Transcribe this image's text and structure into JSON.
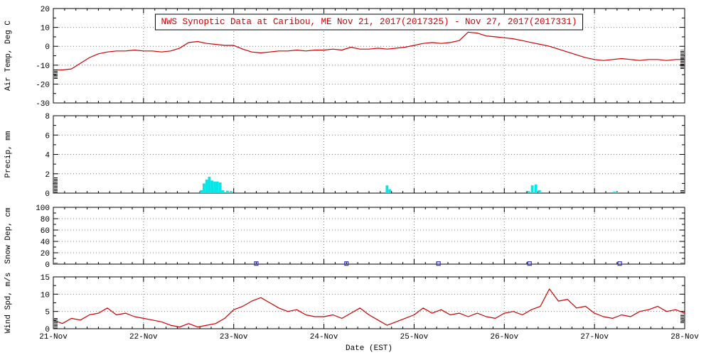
{
  "title": "NWS Synoptic Data at Caribou, ME   Nov 21, 2017(2017325) - Nov 27, 2017(2017331)",
  "colors": {
    "series": "#cc0000",
    "precip_bar": "#00e8e8",
    "snow_marker": "#3333bb",
    "title_text": "#cc0000",
    "grid": "#777777",
    "axis": "#000000"
  },
  "x_axis": {
    "label": "Date (EST)",
    "lim": [
      0,
      7
    ],
    "ticks": [
      0,
      1,
      2,
      3,
      4,
      5,
      6,
      7
    ],
    "tick_labels": [
      "21-Nov",
      "22-Nov",
      "23-Nov",
      "24-Nov",
      "25-Nov",
      "26-Nov",
      "27-Nov",
      "28-Nov"
    ],
    "minor_step": 0.125
  },
  "chart_data": [
    {
      "id": "air-temp",
      "type": "line",
      "ylabel": "Air Temp, Deg C",
      "ylim": [
        -30,
        20
      ],
      "yticks": [
        -30,
        -20,
        -10,
        0,
        10,
        20
      ],
      "minor_step": 5,
      "x_start": 0,
      "x_step": 0.1,
      "y": [
        -12.5,
        -12.5,
        -12,
        -9,
        -6,
        -4,
        -3,
        -2.5,
        -2.5,
        -2,
        -2.5,
        -2.5,
        -3,
        -2.5,
        -1,
        2,
        2.5,
        1.5,
        1,
        0.5,
        0.5,
        -1.5,
        -3,
        -3.5,
        -3,
        -2.5,
        -2.5,
        -2,
        -2.5,
        -2,
        -2,
        -1.5,
        -2,
        -0.5,
        -1.5,
        -1.5,
        -1,
        -1.5,
        -1,
        -0.5,
        0.5,
        1.5,
        2,
        1.5,
        2,
        3,
        7.5,
        7,
        5.5,
        5,
        4.5,
        4,
        3,
        2,
        1,
        0,
        -1.5,
        -3,
        -4.5,
        -6,
        -7,
        -7.5,
        -7,
        -6.5,
        -7,
        -7.5,
        -7,
        -7,
        -7.5,
        -7,
        -7
      ],
      "edge_left": [
        -17.5,
        -12
      ],
      "edge_right": [
        -12,
        -2
      ]
    },
    {
      "id": "precip",
      "type": "bar",
      "ylabel": "Precip, mm",
      "ylim": [
        0,
        8
      ],
      "yticks": [
        0,
        2,
        4,
        6,
        8
      ],
      "minor_step": 1,
      "bars": [
        {
          "x": 1.64,
          "h": 0.3
        },
        {
          "x": 1.67,
          "h": 1.0
        },
        {
          "x": 1.7,
          "h": 1.4
        },
        {
          "x": 1.73,
          "h": 1.7
        },
        {
          "x": 1.76,
          "h": 1.3
        },
        {
          "x": 1.79,
          "h": 1.2
        },
        {
          "x": 1.82,
          "h": 1.2
        },
        {
          "x": 1.85,
          "h": 1.1
        },
        {
          "x": 1.88,
          "h": 0.3
        },
        {
          "x": 1.93,
          "h": 0.25
        },
        {
          "x": 1.97,
          "h": 0.2
        },
        {
          "x": 3.7,
          "h": 0.8
        },
        {
          "x": 3.73,
          "h": 0.4
        },
        {
          "x": 5.27,
          "h": 0.2
        },
        {
          "x": 5.31,
          "h": 0.8
        },
        {
          "x": 5.35,
          "h": 0.9
        },
        {
          "x": 5.39,
          "h": 0.3
        },
        {
          "x": 6.22,
          "h": 0.15
        },
        {
          "x": 6.25,
          "h": 0.1
        }
      ],
      "edge_left": [
        0,
        1.65
      ],
      "edge_right": [
        0,
        0.35
      ]
    },
    {
      "id": "snow-depth",
      "type": "scatter",
      "ylabel": "Snow Dep, cm",
      "ylim": [
        0,
        100
      ],
      "yticks": [
        0,
        20,
        40,
        60,
        80,
        100
      ],
      "minor_step": 10,
      "x": [
        2.25,
        3.25,
        4.27,
        5.28,
        6.28
      ],
      "y": [
        1,
        1,
        1,
        1,
        1
      ],
      "edge_left": [
        0,
        2
      ],
      "edge_right": [
        0,
        2
      ]
    },
    {
      "id": "wind-speed",
      "type": "line",
      "ylabel": "Wind Spd, m/s",
      "ylim": [
        0,
        15
      ],
      "yticks": [
        0,
        5,
        10,
        15
      ],
      "minor_step": 2.5,
      "x_start": 0,
      "x_step": 0.1,
      "y": [
        2.5,
        1.5,
        3,
        2.5,
        4,
        4.5,
        6,
        4,
        4.5,
        3.5,
        3,
        2.5,
        2,
        1,
        0.5,
        1.5,
        0.5,
        1,
        1.5,
        3,
        5.5,
        6.5,
        8,
        9,
        7.5,
        6,
        5,
        5.5,
        4,
        3.5,
        3.5,
        4,
        3,
        4.5,
        6,
        4,
        2.5,
        1,
        2,
        3,
        4,
        6,
        4.5,
        5.5,
        4,
        4.5,
        3.5,
        4.5,
        3.5,
        3,
        4.5,
        5,
        4,
        5.5,
        6.5,
        11.5,
        8,
        8.5,
        6,
        6.5,
        4.5,
        3.5,
        3,
        4,
        3.5,
        5,
        5.5,
        6.5,
        5,
        5.5,
        4.5
      ],
      "edge_left": [
        0,
        3.2
      ],
      "edge_right": [
        1.5,
        4.2
      ]
    }
  ]
}
